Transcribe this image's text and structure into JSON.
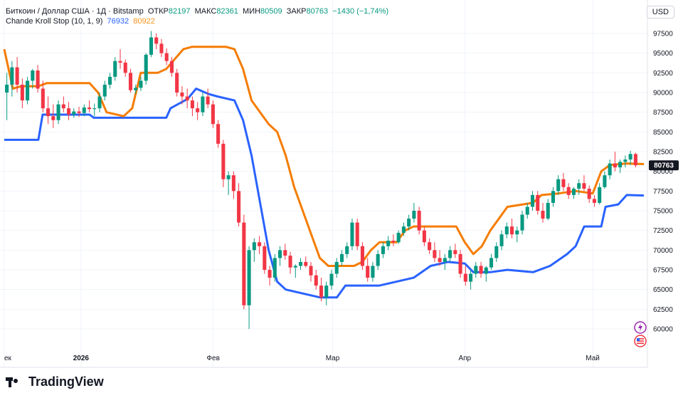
{
  "header": {
    "symbol": "Биткоин / Доллар США · 1Д · Bitstamp",
    "open_label": "ОТКР",
    "open": "82197",
    "high_label": "МАКС",
    "high": "82361",
    "low_label": "МИН",
    "low": "80509",
    "close_label": "ЗАКР",
    "close": "80763",
    "change": "−1430 (−1,74%)",
    "indicator": "Chande Kroll Stop (10, 1, 9)",
    "stop_long": "76932",
    "stop_short": "80922"
  },
  "currency_button": "USD",
  "brand": "TradingView",
  "colors": {
    "up": "#089981",
    "down": "#f23645",
    "long_stop": "#2962ff",
    "short_stop": "#f57c00",
    "price_tag": "#131722"
  },
  "icons": [
    "lightning-icon",
    "us-flag-icon"
  ],
  "chart_data": {
    "type": "candlestick",
    "price_axis": {
      "min": 60000,
      "max": 97500,
      "ticks": [
        "97500",
        "95000",
        "92500",
        "90000",
        "87500",
        "85000",
        "82500",
        "80000",
        "77500",
        "75000",
        "72500",
        "70000",
        "67500",
        "65000",
        "62500",
        "60000"
      ]
    },
    "last_price_label": "80763",
    "x_ticks": [
      {
        "label": "ек",
        "day": 0
      },
      {
        "label": "2026",
        "day": 18
      },
      {
        "label": "Фев",
        "day": 49
      },
      {
        "label": "Мар",
        "day": 77
      },
      {
        "label": "Апр",
        "day": 108
      },
      {
        "label": "Май",
        "day": 138
      }
    ],
    "days": 150,
    "candles": [
      [
        90000,
        92500,
        86500,
        91000
      ],
      [
        91000,
        94000,
        89500,
        93200
      ],
      [
        93200,
        94500,
        90000,
        91000
      ],
      [
        91000,
        91800,
        88000,
        89000
      ],
      [
        89000,
        92000,
        88500,
        91500
      ],
      [
        91500,
        93000,
        90500,
        92800
      ],
      [
        92800,
        93500,
        90000,
        90500
      ],
      [
        90500,
        91500,
        87500,
        88000
      ],
      [
        88000,
        89500,
        86000,
        87000
      ],
      [
        87000,
        88500,
        85500,
        86500
      ],
      [
        86500,
        89000,
        86000,
        88500
      ],
      [
        88500,
        89500,
        87500,
        88000
      ],
      [
        88000,
        88800,
        86500,
        87200
      ],
      [
        87200,
        88000,
        86800,
        87600
      ],
      [
        87600,
        88200,
        86900,
        87400
      ],
      [
        87400,
        88500,
        87000,
        88100
      ],
      [
        88100,
        89000,
        87500,
        87900
      ],
      [
        87900,
        88600,
        87000,
        88000
      ],
      [
        88000,
        90000,
        87500,
        89500
      ],
      [
        89500,
        91500,
        89000,
        91000
      ],
      [
        91000,
        92500,
        90500,
        92000
      ],
      [
        92000,
        94500,
        91500,
        94000
      ],
      [
        94000,
        95500,
        93000,
        93800
      ],
      [
        93800,
        94200,
        92000,
        92500
      ],
      [
        92500,
        93000,
        90000,
        90300
      ],
      [
        90300,
        91000,
        89800,
        90600
      ],
      [
        90600,
        92000,
        90200,
        91500
      ],
      [
        91500,
        95000,
        91000,
        94800
      ],
      [
        94800,
        97800,
        94500,
        97000
      ],
      [
        97000,
        97500,
        95500,
        96200
      ],
      [
        96200,
        96800,
        94500,
        95000
      ],
      [
        95000,
        95600,
        93500,
        94000
      ],
      [
        94000,
        94500,
        92000,
        92500
      ],
      [
        92500,
        93000,
        89500,
        90000
      ],
      [
        90000,
        90800,
        88500,
        89500
      ],
      [
        89500,
        90500,
        88000,
        89000
      ],
      [
        89000,
        89500,
        87000,
        88000
      ],
      [
        88000,
        88800,
        86500,
        87500
      ],
      [
        87500,
        90000,
        87000,
        89500
      ],
      [
        89500,
        90500,
        88000,
        88500
      ],
      [
        88500,
        89000,
        85500,
        86000
      ],
      [
        86000,
        86500,
        83000,
        83500
      ],
      [
        83500,
        84000,
        78000,
        79000
      ],
      [
        79000,
        80000,
        77000,
        79500
      ],
      [
        79500,
        80000,
        76500,
        77500
      ],
      [
        77500,
        78500,
        73000,
        73500
      ],
      [
        73500,
        74500,
        62500,
        63000
      ],
      [
        63000,
        70500,
        60000,
        70000
      ],
      [
        70000,
        71500,
        68500,
        71000
      ],
      [
        71000,
        71800,
        69500,
        70500
      ],
      [
        70500,
        71000,
        67000,
        67500
      ],
      [
        67500,
        68000,
        65500,
        66500
      ],
      [
        66500,
        69500,
        66000,
        69000
      ],
      [
        69000,
        70500,
        68000,
        70000
      ],
      [
        70000,
        70800,
        68800,
        69300
      ],
      [
        69300,
        69800,
        67000,
        67800
      ],
      [
        67800,
        68200,
        66500,
        68000
      ],
      [
        68000,
        69000,
        67500,
        68500
      ],
      [
        68500,
        69200,
        67800,
        68000
      ],
      [
        68000,
        68500,
        66000,
        66800
      ],
      [
        66800,
        67500,
        65000,
        65500
      ],
      [
        65500,
        66500,
        63500,
        64000
      ],
      [
        64000,
        66000,
        63000,
        65500
      ],
      [
        65500,
        67500,
        65000,
        67000
      ],
      [
        67000,
        69000,
        66500,
        68500
      ],
      [
        68500,
        70000,
        68000,
        69500
      ],
      [
        69500,
        71000,
        69000,
        70500
      ],
      [
        70500,
        74000,
        70000,
        73500
      ],
      [
        73500,
        74000,
        70000,
        70500
      ],
      [
        70500,
        71000,
        67500,
        68000
      ],
      [
        68000,
        69000,
        66000,
        66500
      ],
      [
        66500,
        68500,
        66000,
        68000
      ],
      [
        68000,
        70000,
        67500,
        69500
      ],
      [
        69500,
        71000,
        69000,
        70500
      ],
      [
        70500,
        71800,
        70000,
        71200
      ],
      [
        71200,
        72000,
        70500,
        71000
      ],
      [
        71000,
        72500,
        70800,
        72200
      ],
      [
        72200,
        73500,
        71800,
        73000
      ],
      [
        73000,
        74500,
        72500,
        74000
      ],
      [
        74000,
        76000,
        73500,
        75000
      ],
      [
        75000,
        75500,
        72000,
        72500
      ],
      [
        72500,
        73000,
        70500,
        71000
      ],
      [
        71000,
        71500,
        69500,
        70000
      ],
      [
        70000,
        71000,
        68500,
        69000
      ],
      [
        69000,
        70000,
        68000,
        68500
      ],
      [
        68500,
        69500,
        67500,
        69000
      ],
      [
        69000,
        70500,
        68500,
        70000
      ],
      [
        70000,
        70800,
        69000,
        69500
      ],
      [
        69500,
        70000,
        66500,
        67000
      ],
      [
        67000,
        68000,
        65500,
        66000
      ],
      [
        66000,
        67500,
        65000,
        67000
      ],
      [
        67000,
        68500,
        66500,
        68000
      ],
      [
        68000,
        68500,
        66500,
        67000
      ],
      [
        67000,
        68000,
        66000,
        67800
      ],
      [
        67800,
        69500,
        67500,
        69000
      ],
      [
        69000,
        71000,
        68500,
        70500
      ],
      [
        70500,
        72500,
        70000,
        72000
      ],
      [
        72000,
        73500,
        71500,
        73000
      ],
      [
        73000,
        74000,
        71500,
        72000
      ],
      [
        72000,
        73000,
        71000,
        72500
      ],
      [
        72500,
        75000,
        72000,
        74500
      ],
      [
        74500,
        76000,
        74000,
        75500
      ],
      [
        75500,
        77500,
        75000,
        77000
      ],
      [
        77000,
        77500,
        74500,
        75000
      ],
      [
        75000,
        76000,
        73500,
        74000
      ],
      [
        74000,
        76500,
        73800,
        76000
      ],
      [
        76000,
        78000,
        75500,
        77500
      ],
      [
        77500,
        79500,
        77000,
        79000
      ],
      [
        79000,
        79800,
        77500,
        78000
      ],
      [
        78000,
        78500,
        76500,
        77000
      ],
      [
        77000,
        78000,
        76500,
        77800
      ],
      [
        77800,
        79000,
        77000,
        78500
      ],
      [
        78500,
        79500,
        77500,
        77800
      ],
      [
        77800,
        78200,
        76000,
        76500
      ],
      [
        76500,
        77000,
        75500,
        76000
      ],
      [
        76000,
        78500,
        75800,
        78000
      ],
      [
        78000,
        80000,
        77800,
        79500
      ],
      [
        79500,
        81500,
        79000,
        81000
      ],
      [
        81000,
        82500,
        80000,
        80500
      ],
      [
        80500,
        81500,
        79800,
        81200
      ],
      [
        81200,
        82000,
        80500,
        81500
      ],
      [
        81500,
        82600,
        80800,
        82200
      ],
      [
        82197,
        82361,
        80509,
        80763
      ]
    ],
    "series": [
      {
        "name": "76932",
        "values": [
          [
            0,
            84000
          ],
          [
            8,
            84000
          ],
          [
            9,
            87200
          ],
          [
            20,
            87200
          ],
          [
            21,
            86800
          ],
          [
            38,
            86800
          ],
          [
            39,
            88000
          ],
          [
            43,
            89200
          ],
          [
            45,
            90500
          ],
          [
            48,
            89800
          ],
          [
            50,
            89500
          ],
          [
            54,
            89000
          ],
          [
            56,
            86500
          ],
          [
            58,
            82000
          ],
          [
            60,
            76000
          ],
          [
            62,
            70000
          ],
          [
            64,
            66000
          ],
          [
            66,
            65000
          ],
          [
            70,
            64500
          ],
          [
            74,
            64000
          ],
          [
            78,
            64000
          ],
          [
            80,
            65500
          ],
          [
            88,
            65500
          ],
          [
            92,
            66000
          ],
          [
            96,
            66500
          ],
          [
            100,
            68000
          ],
          [
            104,
            68500
          ],
          [
            108,
            68300
          ],
          [
            110,
            67200
          ],
          [
            114,
            67200
          ],
          [
            118,
            67500
          ],
          [
            124,
            67200
          ],
          [
            128,
            68000
          ],
          [
            132,
            69500
          ],
          [
            134,
            70500
          ],
          [
            136,
            73000
          ],
          [
            140,
            73000
          ],
          [
            141,
            75500
          ],
          [
            144,
            75800
          ],
          [
            146,
            77000
          ],
          [
            150,
            76932
          ]
        ]
      },
      {
        "name": "80922",
        "values": [
          [
            0,
            95500
          ],
          [
            2,
            90500
          ],
          [
            4,
            90800
          ],
          [
            8,
            90800
          ],
          [
            10,
            91200
          ],
          [
            20,
            91200
          ],
          [
            22,
            90000
          ],
          [
            24,
            87500
          ],
          [
            28,
            87000
          ],
          [
            30,
            88000
          ],
          [
            32,
            92500
          ],
          [
            36,
            92500
          ],
          [
            38,
            93000
          ],
          [
            42,
            95500
          ],
          [
            44,
            95800
          ],
          [
            52,
            95800
          ],
          [
            54,
            95500
          ],
          [
            56,
            93000
          ],
          [
            58,
            89000
          ],
          [
            60,
            87500
          ],
          [
            62,
            86000
          ],
          [
            64,
            85000
          ],
          [
            66,
            82000
          ],
          [
            68,
            78000
          ],
          [
            70,
            75000
          ],
          [
            72,
            72000
          ],
          [
            74,
            69000
          ],
          [
            76,
            68000
          ],
          [
            82,
            68000
          ],
          [
            84,
            68500
          ],
          [
            86,
            70000
          ],
          [
            88,
            71000
          ],
          [
            92,
            71000
          ],
          [
            94,
            72500
          ],
          [
            96,
            73000
          ],
          [
            106,
            73000
          ],
          [
            108,
            71000
          ],
          [
            110,
            69500
          ],
          [
            112,
            70500
          ],
          [
            114,
            72500
          ],
          [
            116,
            74000
          ],
          [
            118,
            75500
          ],
          [
            124,
            76000
          ],
          [
            126,
            77000
          ],
          [
            130,
            77200
          ],
          [
            134,
            77500
          ],
          [
            138,
            77200
          ],
          [
            140,
            80000
          ],
          [
            142,
            80800
          ],
          [
            146,
            81000
          ],
          [
            150,
            80922
          ]
        ]
      }
    ]
  }
}
